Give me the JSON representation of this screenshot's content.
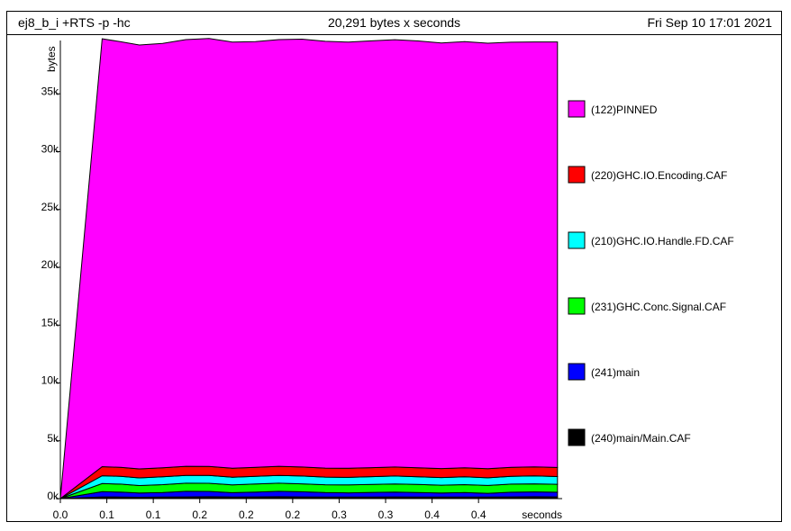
{
  "header": {
    "program": "ej8_b_i +RTS -p -hc",
    "total": "20,291 bytes x seconds",
    "date": "Fri Sep 10 17:01 2021"
  },
  "chart_data": {
    "type": "area",
    "title": "20,291 bytes x seconds",
    "xlabel": "seconds",
    "ylabel": "bytes",
    "ylim": [
      0,
      40000
    ],
    "xlim": [
      0,
      0.54
    ],
    "x_tick_labels": [
      "0.0",
      "0.1",
      "0.1",
      "0.2",
      "0.2",
      "0.2",
      "0.3",
      "0.3",
      "0.4",
      "0.4"
    ],
    "x_tick_values": [
      0.0,
      0.05,
      0.1,
      0.15,
      0.2,
      0.25,
      0.3,
      0.35,
      0.4,
      0.45
    ],
    "y_tick_labels": [
      "0k",
      "5k",
      "10k",
      "15k",
      "20k",
      "25k",
      "30k",
      "35k"
    ],
    "y_tick_values": [
      0,
      5000,
      10000,
      15000,
      20000,
      25000,
      30000,
      35000
    ],
    "x": [
      0.0,
      0.045,
      0.065,
      0.085,
      0.11,
      0.135,
      0.16,
      0.185,
      0.21,
      0.235,
      0.26,
      0.285,
      0.31,
      0.335,
      0.36,
      0.385,
      0.41,
      0.435,
      0.46,
      0.485,
      0.51,
      0.535
    ],
    "series": [
      {
        "name": "(240)main/Main.CAF",
        "color": "#000000",
        "values": [
          0,
          150,
          140,
          120,
          130,
          150,
          160,
          140,
          150,
          160,
          150,
          140,
          130,
          140,
          150,
          140,
          130,
          140,
          130,
          150,
          160,
          150
        ]
      },
      {
        "name": "(241)main",
        "color": "#0000ff",
        "values": [
          0,
          450,
          430,
          360,
          400,
          480,
          460,
          370,
          420,
          470,
          440,
          380,
          370,
          400,
          420,
          390,
          350,
          380,
          330,
          400,
          420,
          400
        ]
      },
      {
        "name": "(231)GHC.Conc.Signal.CAF",
        "color": "#00ff00",
        "values": [
          0,
          700,
          680,
          650,
          680,
          700,
          700,
          680,
          690,
          700,
          690,
          680,
          680,
          690,
          700,
          690,
          680,
          690,
          680,
          700,
          700,
          690
        ]
      },
      {
        "name": "(210)GHC.IO.Handle.FD.CAF",
        "color": "#00ffff",
        "values": [
          0,
          680,
          670,
          660,
          670,
          680,
          680,
          660,
          670,
          680,
          670,
          660,
          660,
          670,
          680,
          670,
          660,
          670,
          660,
          680,
          680,
          670
        ]
      },
      {
        "name": "(220)GHC.IO.Encoding.CAF",
        "color": "#ff0000",
        "values": [
          0,
          780,
          780,
          780,
          780,
          780,
          780,
          780,
          780,
          780,
          780,
          780,
          780,
          780,
          780,
          780,
          780,
          780,
          780,
          780,
          780,
          780
        ]
      },
      {
        "name": "(122)PINNED",
        "color": "#ff00ff",
        "values": [
          0,
          37000,
          36800,
          36650,
          36700,
          36900,
          37000,
          36850,
          36800,
          36900,
          37000,
          36900,
          36850,
          36900,
          36950,
          36900,
          36800,
          36850,
          36800,
          36750,
          36750,
          36800
        ]
      }
    ],
    "legend_order": [
      "(122)PINNED",
      "(220)GHC.IO.Encoding.CAF",
      "(210)GHC.IO.Handle.FD.CAF",
      "(231)GHC.Conc.Signal.CAF",
      "(241)main",
      "(240)main/Main.CAF"
    ],
    "legend_placement": "right"
  }
}
